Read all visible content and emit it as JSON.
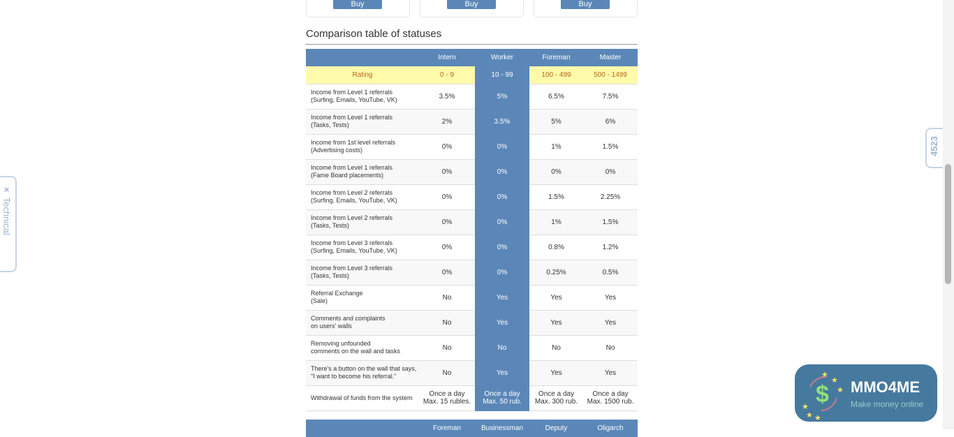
{
  "cards": [
    {
      "button": "Buy"
    },
    {
      "button": "Buy"
    },
    {
      "button": "Buy"
    }
  ],
  "title": "Comparison table of statuses",
  "table1": {
    "headers": [
      "",
      "Intern",
      "Worker",
      "Foreman",
      "Master"
    ],
    "rating": [
      "Rating",
      "0 - 9",
      "10 - 99",
      "100 - 499",
      "500 - 1499"
    ],
    "rows": [
      [
        "Income from Level 1 referrals\n(Surfing, Emails, YouTube, VK)",
        "3.5%",
        "5%",
        "6.5%",
        "7.5%"
      ],
      [
        "Income from Level 1 referrals\n(Tasks, Tests)",
        "2%",
        "3.5%",
        "5%",
        "6%"
      ],
      [
        "Income from 1st level referrals\n(Advertising costs)",
        "0%",
        "0%",
        "1%",
        "1.5%"
      ],
      [
        "Income from Level 1 referrals\n(Fame Board placements)",
        "0%",
        "0%",
        "0%",
        "0%"
      ],
      [
        "Income from Level 2 referrals\n(Surfing, Emails, YouTube, VK)",
        "0%",
        "0%",
        "1.5%",
        "2.25%"
      ],
      [
        "Income from Level 2 referrals\n(Tasks, Tests)",
        "0%",
        "0%",
        "1%",
        "1.5%"
      ],
      [
        "Income from Level 3 referrals\n(Surfing, Emails, YouTube, VK)",
        "0%",
        "0%",
        "0.8%",
        "1.2%"
      ],
      [
        "Income from Level 3 referrals\n(Tasks, Tests)",
        "0%",
        "0%",
        "0.25%",
        "0.5%"
      ],
      [
        "Referral Exchange\n(Sale)",
        "No",
        "Yes",
        "Yes",
        "Yes"
      ],
      [
        "Comments and complaints\non users' walls",
        "No",
        "Yes",
        "Yes",
        "Yes"
      ],
      [
        "Removing unfounded\ncomments on the wall and tasks",
        "No",
        "No",
        "No",
        "No"
      ],
      [
        "There's a button on the wall that says,\n\"I want to become his referral.\"",
        "No",
        "Yes",
        "Yes",
        "Yes"
      ],
      [
        "Withdrawal of funds from the system",
        "Once a day\nMax. 15 rubles.",
        "Once a day\nMax. 50 rub.",
        "Once a day\nMax. 300 rub.",
        "Once a day\nMax. 1500 rub."
      ]
    ]
  },
  "table2": {
    "headers": [
      "",
      "Foreman",
      "Businessman",
      "Deputy",
      "Oligarch"
    ]
  },
  "side_tab": {
    "close": "×",
    "label": "Technical"
  },
  "counter": "4523",
  "logo": {
    "name": "MMO4ME",
    "tagline": "Make money online"
  },
  "colors": {
    "accent": "#5b87b8",
    "rating_bg": "#fffbaa",
    "rating_text": "#b8651a"
  }
}
